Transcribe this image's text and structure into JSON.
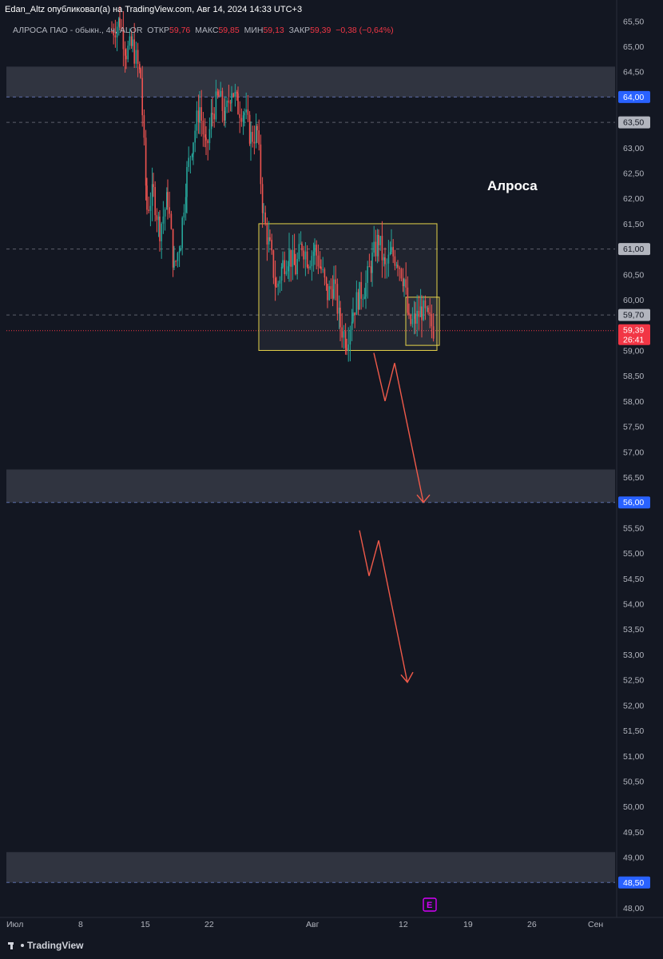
{
  "header": {
    "publisher": "Edan_Altz опубликовал(а) на TradingView.com, Авг 14, 2024 14:33 UTC+3",
    "symbol": "АЛРОСА ПАО - обыкн., 4ч, ALOR",
    "open_label": "ОТКР",
    "open": "59,76",
    "high_label": "МАКС",
    "high": "59,85",
    "low_label": "МИН",
    "low": "59,13",
    "close_label": "ЗАКР",
    "close": "59,39",
    "change": "−0,38 (−0,64%)"
  },
  "chart_data": {
    "type": "candlestick",
    "title": "Алроса",
    "timeframe": "4ч",
    "ylim": [
      47.8,
      65.6
    ],
    "x_ticks": [
      "Июл",
      "8",
      "15",
      "22",
      "Авг",
      "12",
      "19",
      "26",
      "Сен"
    ],
    "y_ticks": [
      "65,50",
      "65,00",
      "64,50",
      "64,00",
      "63,50",
      "63,00",
      "62,50",
      "62,00",
      "61,50",
      "61,00",
      "60,50",
      "60,00",
      "59,70",
      "59,39",
      "59,00",
      "58,50",
      "58,00",
      "57,50",
      "57,00",
      "56,50",
      "56,00",
      "55,50",
      "55,00",
      "54,50",
      "54,00",
      "53,50",
      "53,00",
      "52,50",
      "52,00",
      "51,50",
      "51,00",
      "50,50",
      "50,00",
      "49,50",
      "49,00",
      "48,50",
      "48,00"
    ],
    "price_tags": [
      {
        "value": 64.0,
        "label": "64,00",
        "color": "#2962ff"
      },
      {
        "value": 63.5,
        "label": "63,50",
        "color": "#b2b5be"
      },
      {
        "value": 61.0,
        "label": "61,00",
        "color": "#b2b5be"
      },
      {
        "value": 59.7,
        "label": "59,70",
        "color": "#b2b5be"
      },
      {
        "value": 59.39,
        "label": "59,39",
        "sub": "26:41",
        "color": "#f23645"
      },
      {
        "value": 56.0,
        "label": "56,00",
        "color": "#2962ff"
      },
      {
        "value": 48.5,
        "label": "48,50",
        "color": "#2962ff"
      }
    ],
    "zones": [
      {
        "from": 64.0,
        "to": 64.6
      },
      {
        "from": 56.0,
        "to": 56.65
      },
      {
        "from": 48.5,
        "to": 49.1
      }
    ],
    "consolidation_box": {
      "from": 59.0,
      "to": 61.5
    },
    "small_box": {
      "from": 59.1,
      "to": 60.05
    },
    "current_price": 59.39,
    "candles_summary": "4h candles from early July to mid August 2024; peak ~65.5 near Jul 10-14, drop to ~60.5 around Jul 19, rebound to ~64.4 by Jul 24-26, decline to range 59.0-61.5 through August",
    "earnings_marker": "E"
  },
  "footer": {
    "brand": "TradingView"
  }
}
